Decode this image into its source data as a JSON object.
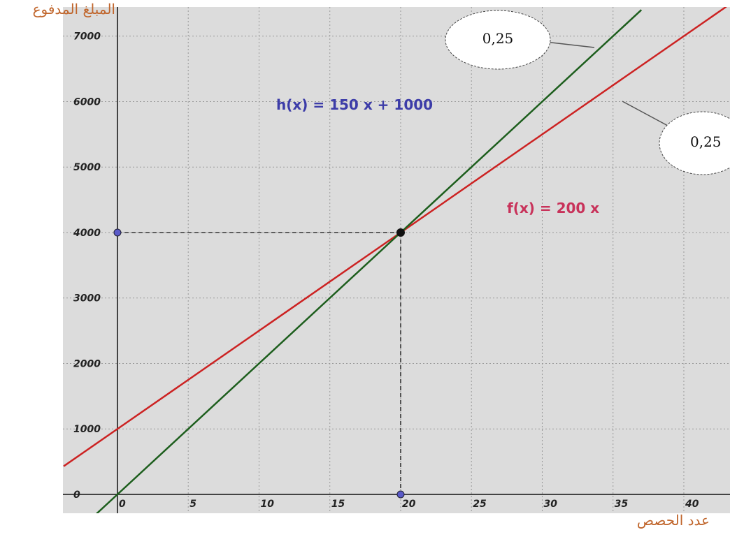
{
  "chart_data": {
    "type": "line",
    "y_label": "المبلغ المدفوع",
    "x_label": "عدد الحصص",
    "xlim": [
      -3.85,
      43.26
    ],
    "ylim": [
      -288,
      7445
    ],
    "xticks": [
      0,
      5,
      10,
      15,
      20,
      25,
      30,
      35,
      40
    ],
    "yticks": [
      0,
      1000,
      2000,
      3000,
      4000,
      5000,
      6000,
      7000
    ],
    "grid": true,
    "series": [
      {
        "name": "h(x) = 150 x + 1000",
        "color": "#cc2222",
        "label_color": "#3c3ca8",
        "x": [
          -3.8,
          0,
          20,
          43
        ],
        "values": [
          430,
          1000,
          4000,
          7450
        ]
      },
      {
        "name": "f(x) = 200 x",
        "color": "#1d5e1d",
        "label_color": "#c8325a",
        "x": [
          -3,
          0,
          20,
          37
        ],
        "values": [
          -600,
          0,
          4000,
          7400
        ]
      }
    ],
    "intersection": {
      "x": 20,
      "y": 4000
    },
    "annotations": [
      "0,25",
      "0,25"
    ]
  }
}
